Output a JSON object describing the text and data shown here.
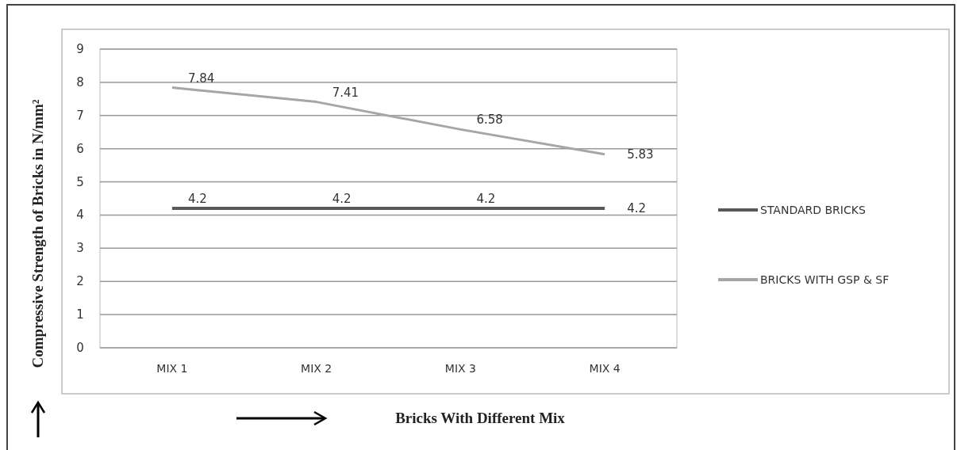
{
  "chart_data": {
    "type": "line",
    "ylabel": "Compressive Strength of Bricks in N/mm²",
    "xlabel": "Bricks With Different Mix",
    "categories": [
      "MIX 1",
      "MIX 2",
      "MIX 3",
      "MIX 4"
    ],
    "series": [
      {
        "name": "STANDARD BRICKS",
        "color": "#595959",
        "values": [
          4.2,
          4.2,
          4.2,
          4.2
        ]
      },
      {
        "name": "BRICKS WITH GSP & SF",
        "color": "#a6a6a6",
        "values": [
          7.84,
          7.41,
          6.58,
          5.83
        ]
      }
    ],
    "ylim": [
      0,
      9
    ],
    "yticks": [
      0,
      1,
      2,
      3,
      4,
      5,
      6,
      7,
      8,
      9
    ],
    "grid": "y",
    "legend": "right",
    "data_labels": true,
    "marker": "none",
    "line_style": "solid"
  }
}
